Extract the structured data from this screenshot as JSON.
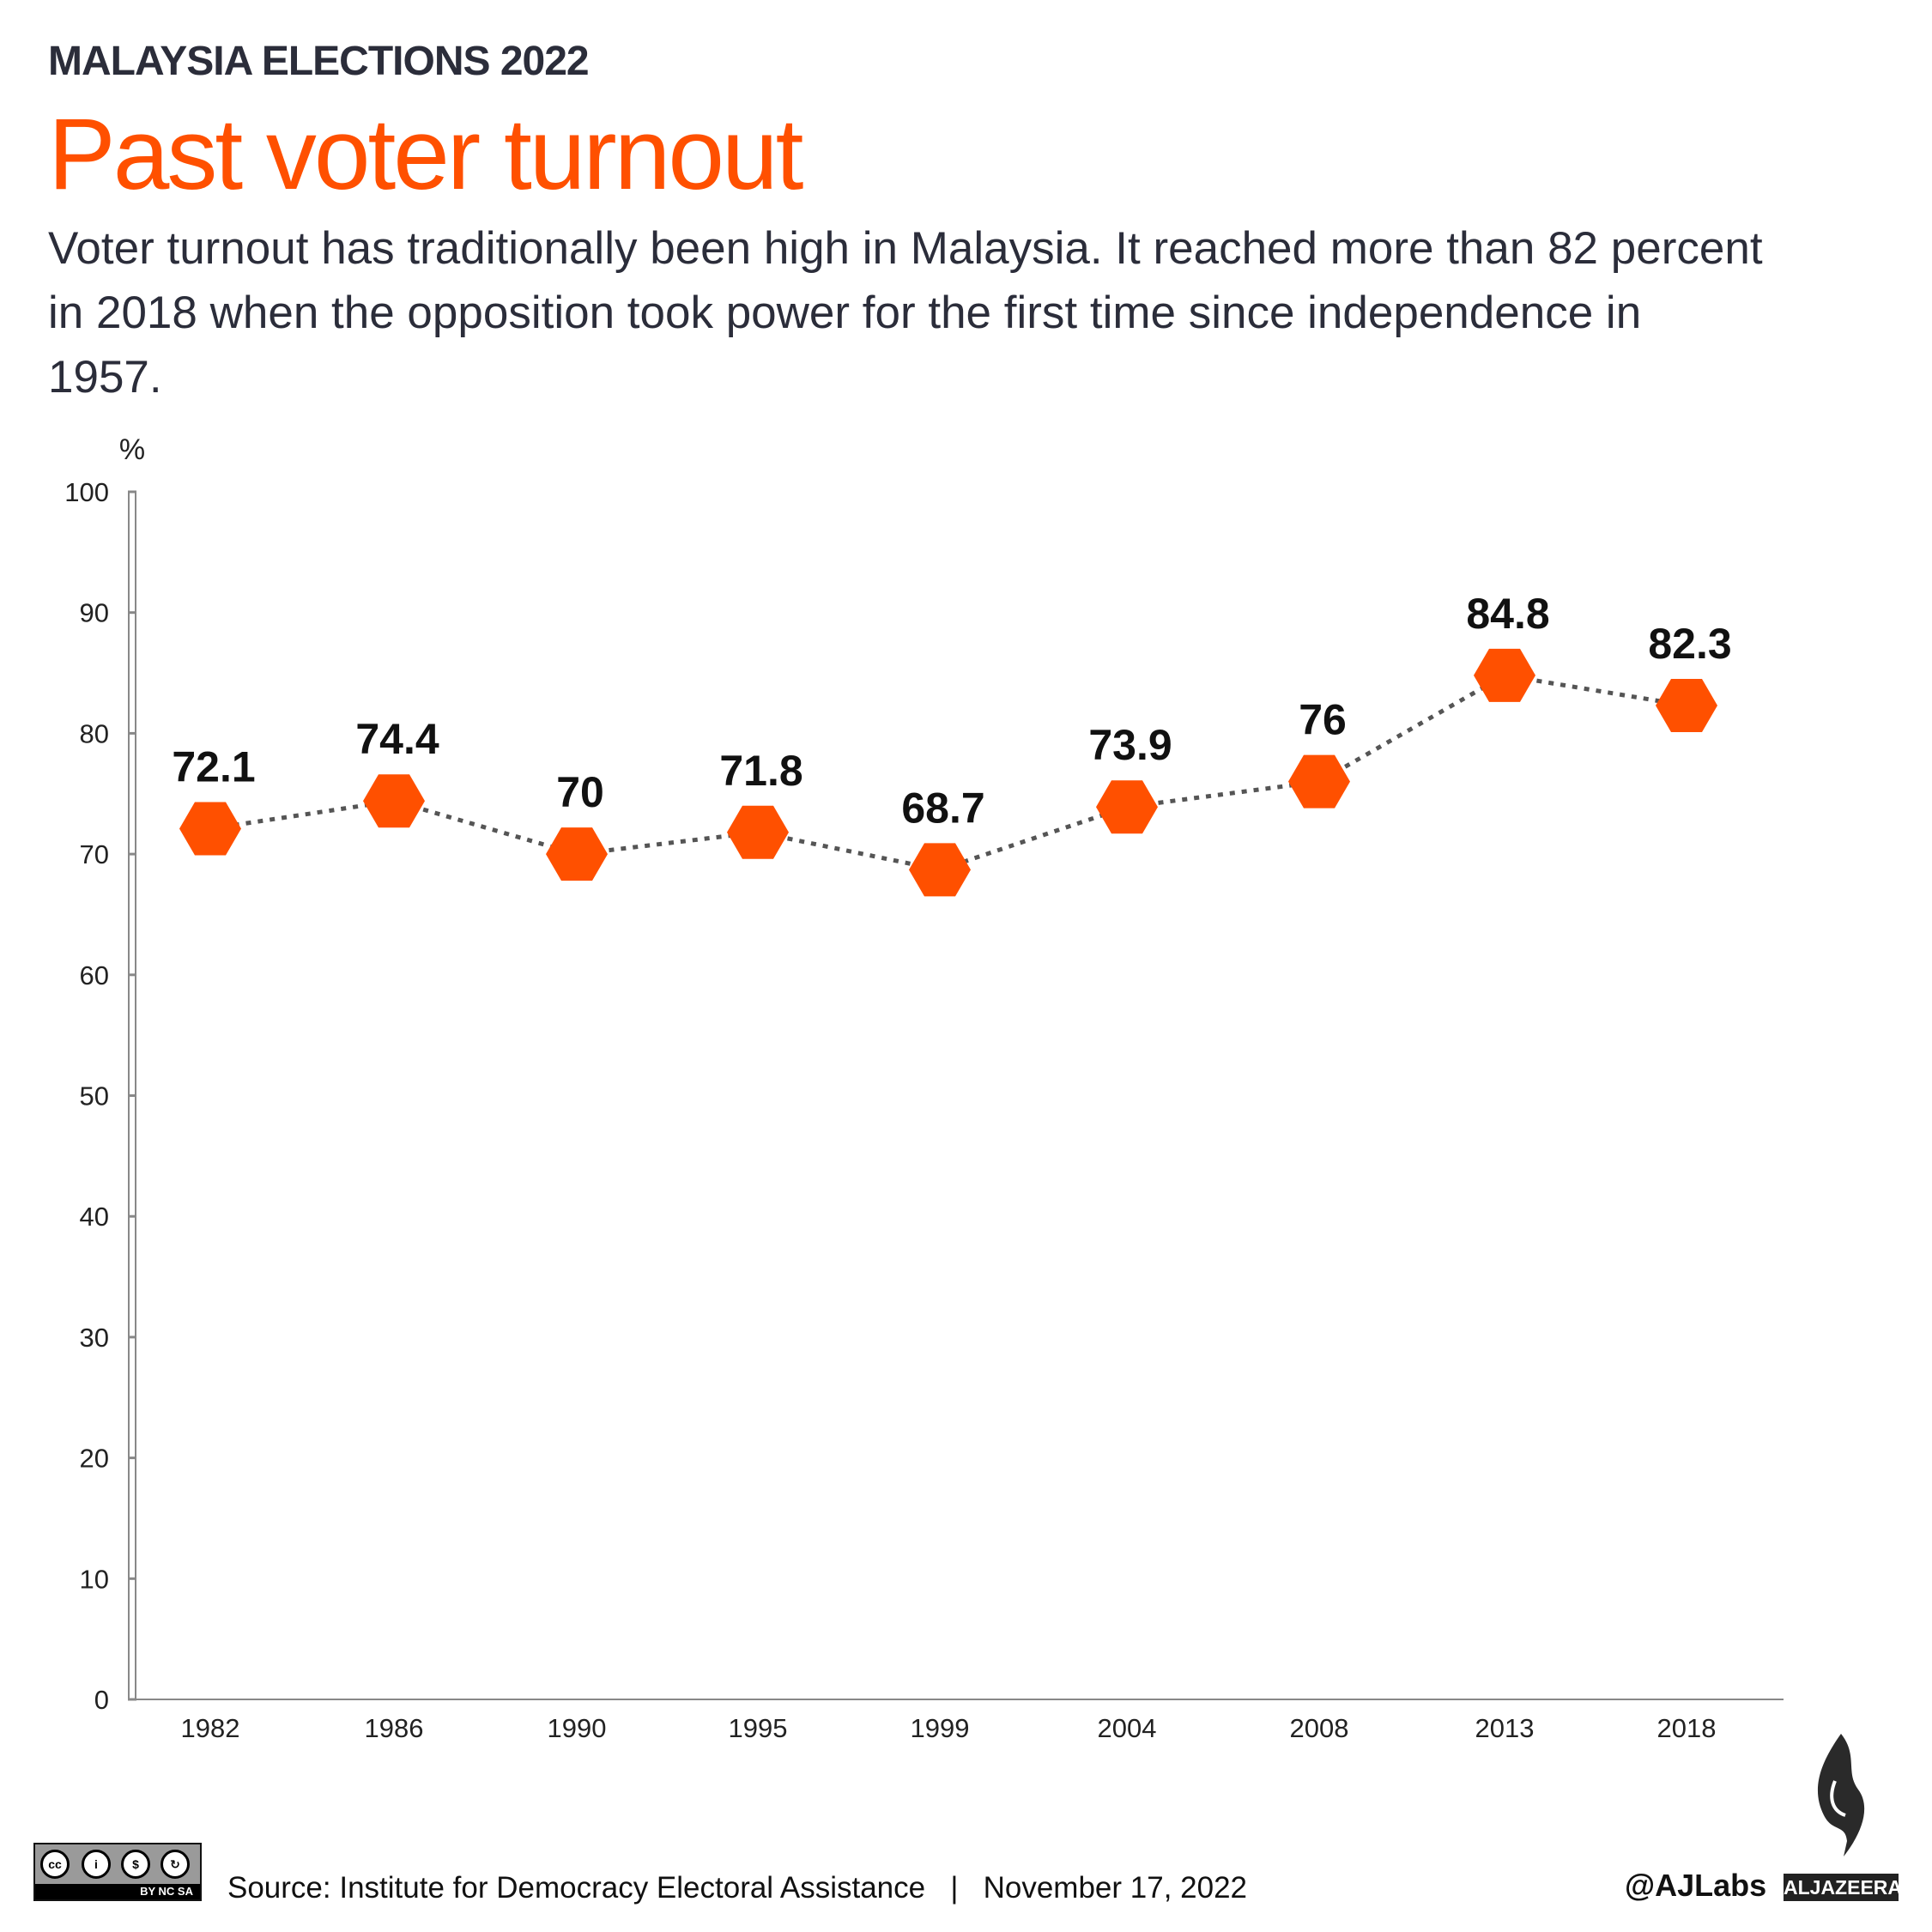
{
  "header": {
    "kicker": "MALAYSIA ELECTIONS 2022",
    "title": "Past voter turnout",
    "subtitle": "Voter turnout has traditionally been high in Malaysia. It reached more than 82 percent in 2018 when the opposition took power for the first time since independence in 1957."
  },
  "colors": {
    "accent": "#ff5000",
    "text": "#2b2d3a",
    "line": "#555555"
  },
  "chart_data": {
    "type": "line",
    "ylabel": "%",
    "ylim": [
      0,
      100
    ],
    "yticks": [
      "0",
      "10",
      "20",
      "30",
      "40",
      "50",
      "60",
      "70",
      "80",
      "90",
      "100"
    ],
    "categories": [
      "1982",
      "1986",
      "1990",
      "1995",
      "1999",
      "2004",
      "2008",
      "2013",
      "2018"
    ],
    "values": [
      72.1,
      74.4,
      70,
      71.8,
      68.7,
      73.9,
      76,
      84.8,
      82.3
    ],
    "labels": [
      "72.1",
      "74.4",
      "70",
      "71.8",
      "68.7",
      "73.9",
      "76",
      "84.8",
      "82.3"
    ],
    "marker": "hexagon",
    "line_style": "dotted",
    "grid": false
  },
  "footer": {
    "source": "Source: Institute for Democracy Electoral Assistance",
    "separator": "|",
    "date": "November 17, 2022",
    "handle": "@AJLabs",
    "brand": "ALJAZEERA",
    "license": "BY NC SA"
  }
}
